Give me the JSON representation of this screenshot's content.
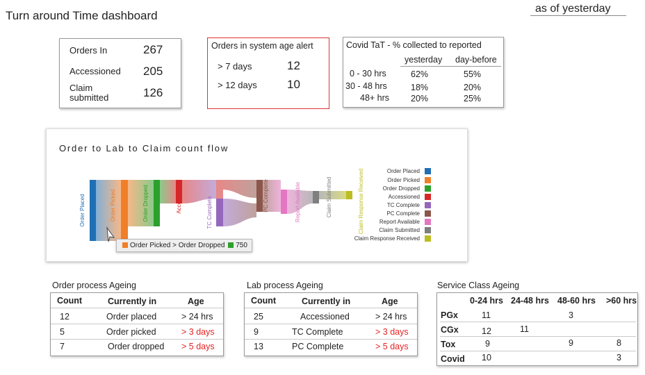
{
  "header": {
    "title": "Turn around Time dashboard",
    "as_of": "as of yesterday"
  },
  "orders_card": {
    "orders_in_label": "Orders In",
    "orders_in_value": "267",
    "accessioned_label": "Accessioned",
    "accessioned_value": "205",
    "claim_label_1": "Claim",
    "claim_label_2": "submitted",
    "claim_value": "126"
  },
  "age_alert_card": {
    "title": "Orders in system age alert",
    "rows": [
      {
        "label": "> 7 days",
        "value": "12"
      },
      {
        "label": "> 12 days",
        "value": "10"
      }
    ]
  },
  "covid_card": {
    "title": "Covid TaT - % collected to reported",
    "col_yesterday": "yesterday",
    "col_daybefore": "day-before",
    "rows": [
      {
        "label": "0 - 30 hrs",
        "yesterday": "62%",
        "daybefore": "55%"
      },
      {
        "label": "30 - 48 hrs",
        "yesterday": "18%",
        "daybefore": "20%"
      },
      {
        "label": "48+ hrs",
        "yesterday": "20%",
        "daybefore": "25%"
      }
    ]
  },
  "sankey": {
    "title": "Order to Lab to Claim count flow",
    "nodes": [
      {
        "name": "Order Placed",
        "color": "#1f6fb4"
      },
      {
        "name": "Order Picked",
        "color": "#f07f29"
      },
      {
        "name": "Order Dropped",
        "color": "#2ca02c"
      },
      {
        "name": "Accessioned",
        "color": "#d62728"
      },
      {
        "name": "TC Complete",
        "color": "#9467bd"
      },
      {
        "name": "PC Complete",
        "color": "#8c564b"
      },
      {
        "name": "Report Available",
        "color": "#e377c2"
      },
      {
        "name": "Claim Submitted",
        "color": "#7f7f7f"
      },
      {
        "name": "Claim Response Received",
        "color": "#bcbd22"
      }
    ],
    "tooltip": {
      "from": "Order Picked",
      "arrow": ">",
      "to": "Order Dropped",
      "value": "750"
    }
  },
  "order_ageing": {
    "title": "Order process Ageing",
    "headers": [
      "Count",
      "Currently in",
      "Age"
    ],
    "rows": [
      {
        "count": "12",
        "in": "Order placed",
        "age": "> 24 hrs",
        "alert": false
      },
      {
        "count": "5",
        "in": "Order picked",
        "age": "> 3 days",
        "alert": true
      },
      {
        "count": "7",
        "in": "Order dropped",
        "age": "> 5 days",
        "alert": true
      }
    ]
  },
  "lab_ageing": {
    "title": "Lab process Ageing",
    "headers": [
      "Count",
      "Currently in",
      "Age"
    ],
    "rows": [
      {
        "count": "25",
        "in": "Accessioned",
        "age": "> 24 hrs",
        "alert": false
      },
      {
        "count": "9",
        "in": "TC Complete",
        "age": "> 3 days",
        "alert": true
      },
      {
        "count": "13",
        "in": "PC Complete",
        "age": "> 5 days",
        "alert": true
      }
    ]
  },
  "service_ageing": {
    "title": "Service Class Ageing",
    "headers": [
      "0-24 hrs",
      "24-48 hrs",
      "48-60 hrs",
      ">60 hrs"
    ],
    "rows": [
      {
        "name": "PGx",
        "c0": "11",
        "c1": "",
        "c2": "3",
        "c3": ""
      },
      {
        "name": "CGx",
        "c0": "12",
        "c1": "11",
        "c2": "",
        "c3": ""
      },
      {
        "name": "Tox",
        "c0": "9",
        "c1": "",
        "c2": "9",
        "c3": "8"
      },
      {
        "name": "Covid",
        "c0": "10",
        "c1": "",
        "c2": "",
        "c3": "3"
      }
    ]
  }
}
